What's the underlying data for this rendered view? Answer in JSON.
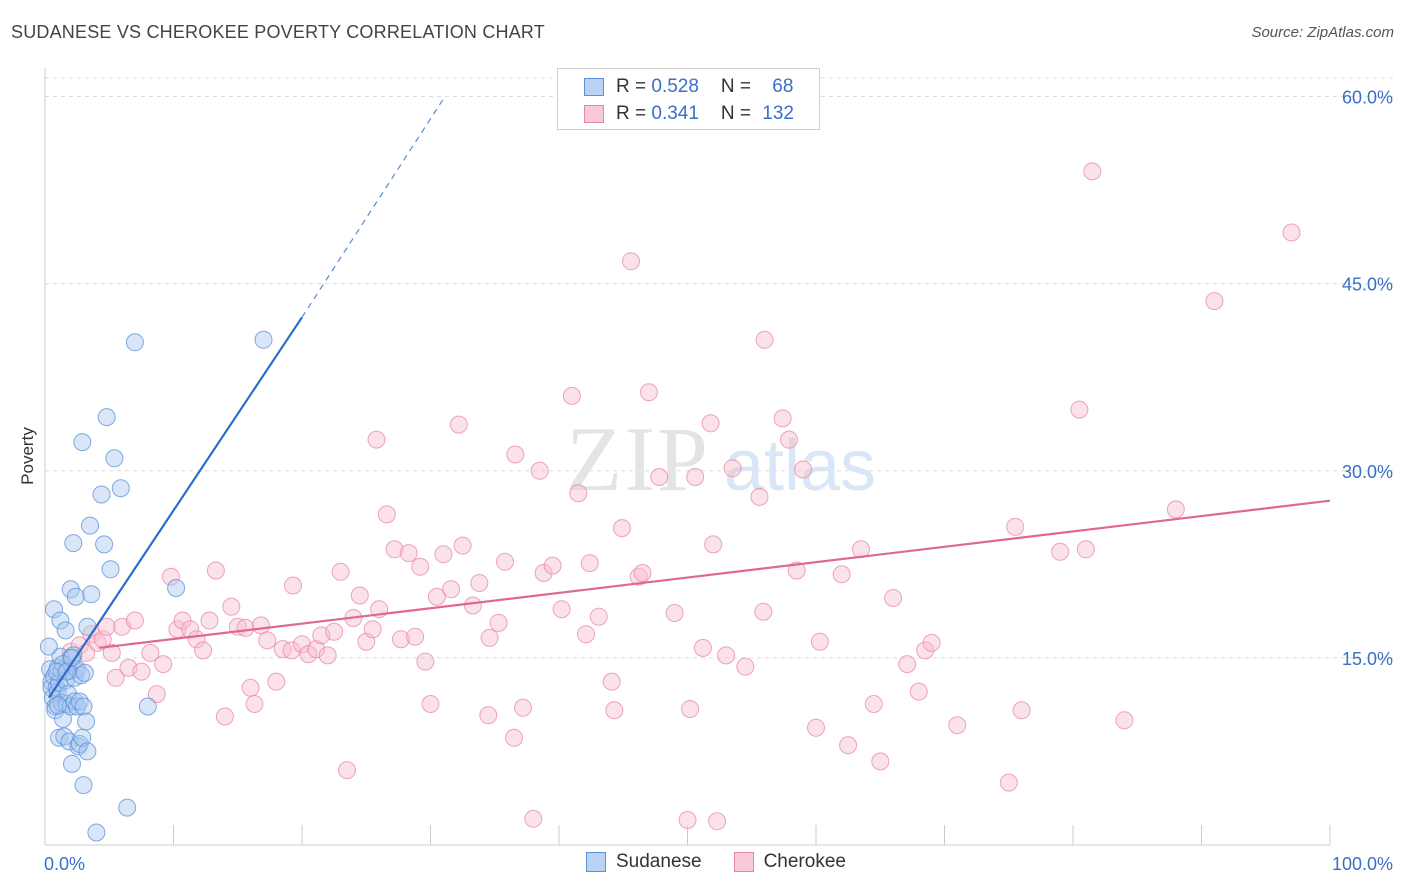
{
  "title": "SUDANESE VS CHEROKEE POVERTY CORRELATION CHART",
  "source": "Source: ZipAtlas.com",
  "watermark": {
    "zip": "ZIP",
    "atlas": "atlas"
  },
  "legend": {
    "rows": [
      {
        "r_label": "R = ",
        "r_value": "0.528",
        "n_label": "N = ",
        "n_value": "68"
      },
      {
        "r_label": "R = ",
        "r_value": "0.341",
        "n_label": "N = ",
        "n_value": "132"
      }
    ]
  },
  "colors": {
    "sudanese_fill": "#a9c8f0",
    "sudanese_stroke": "#5b8fd9",
    "sudanese_line": "#2f6cc9",
    "cherokee_fill": "#f6bccd",
    "cherokee_stroke": "#e888a7",
    "cherokee_line": "#e0688f",
    "axis_label": "#3a6fc8"
  },
  "chart_data": {
    "type": "scatter",
    "title": "SUDANESE VS CHEROKEE POVERTY CORRELATION CHART",
    "xlabel": "",
    "ylabel": "Poverty",
    "xlim": [
      0,
      100
    ],
    "ylim": [
      0,
      60
    ],
    "x_tick_labels": [
      "0.0%",
      "100.0%"
    ],
    "y_ticks": [
      15,
      30,
      45,
      60
    ],
    "y_tick_labels": [
      "15.0%",
      "30.0%",
      "45.0%",
      "60.0%"
    ],
    "grid": "horizontal dashed",
    "legend_position": "top-center",
    "series": [
      {
        "name": "Sudanese",
        "r": 0.528,
        "n": 68,
        "trend": {
          "x": [
            0.3,
            20
          ],
          "y": [
            11.8,
            42.3
          ],
          "dashed_to": [
            31,
            59.8
          ]
        },
        "points": [
          [
            0.3,
            15.9
          ],
          [
            0.4,
            14.1
          ],
          [
            0.5,
            13.1
          ],
          [
            0.5,
            12.6
          ],
          [
            0.6,
            11.8
          ],
          [
            0.7,
            18.9
          ],
          [
            0.7,
            13.5
          ],
          [
            0.8,
            11.1
          ],
          [
            0.8,
            10.8
          ],
          [
            0.9,
            12.6
          ],
          [
            1.0,
            14.2
          ],
          [
            1.0,
            12.3
          ],
          [
            1.1,
            8.6
          ],
          [
            1.1,
            13.0
          ],
          [
            1.2,
            18.0
          ],
          [
            1.2,
            15.1
          ],
          [
            1.3,
            14.0
          ],
          [
            1.3,
            11.4
          ],
          [
            1.4,
            10.1
          ],
          [
            1.5,
            8.7
          ],
          [
            1.6,
            17.2
          ],
          [
            1.6,
            13.2
          ],
          [
            1.7,
            11.3
          ],
          [
            1.8,
            14.0
          ],
          [
            1.8,
            12.1
          ],
          [
            1.9,
            8.3
          ],
          [
            2.0,
            20.5
          ],
          [
            2.0,
            15.0
          ],
          [
            2.0,
            11.1
          ],
          [
            2.1,
            6.5
          ],
          [
            2.2,
            24.2
          ],
          [
            2.2,
            15.2
          ],
          [
            2.3,
            13.4
          ],
          [
            2.3,
            11.5
          ],
          [
            2.4,
            19.9
          ],
          [
            2.5,
            14.1
          ],
          [
            2.5,
            11.1
          ],
          [
            2.6,
            7.9
          ],
          [
            2.7,
            11.5
          ],
          [
            2.7,
            8.1
          ],
          [
            2.8,
            13.6
          ],
          [
            2.9,
            8.6
          ],
          [
            2.9,
            32.3
          ],
          [
            3.0,
            4.8
          ],
          [
            3.0,
            11.1
          ],
          [
            3.1,
            13.8
          ],
          [
            3.2,
            9.9
          ],
          [
            3.3,
            7.5
          ],
          [
            3.3,
            17.5
          ],
          [
            3.5,
            25.6
          ],
          [
            3.6,
            20.1
          ],
          [
            4.0,
            1.0
          ],
          [
            4.4,
            28.1
          ],
          [
            4.6,
            24.1
          ],
          [
            4.8,
            34.3
          ],
          [
            5.1,
            22.1
          ],
          [
            5.4,
            31.0
          ],
          [
            5.9,
            28.6
          ],
          [
            6.4,
            3.0
          ],
          [
            7.0,
            40.3
          ],
          [
            8.0,
            11.1
          ],
          [
            10.2,
            20.6
          ],
          [
            17.0,
            40.5
          ],
          [
            1.4,
            14.5
          ],
          [
            0.9,
            13.9
          ],
          [
            1.7,
            13.9
          ],
          [
            2.1,
            15.0
          ],
          [
            1.0,
            11.2
          ]
        ]
      },
      {
        "name": "Cherokee",
        "r": 0.341,
        "n": 132,
        "trend": {
          "x": [
            4.2,
            100
          ],
          "y": [
            15.8,
            27.6
          ]
        },
        "points": [
          [
            1.5,
            14.2
          ],
          [
            2.0,
            15.5
          ],
          [
            2.3,
            14.1
          ],
          [
            2.7,
            16.0
          ],
          [
            3.2,
            15.4
          ],
          [
            3.6,
            16.9
          ],
          [
            4.1,
            16.2
          ],
          [
            4.5,
            16.5
          ],
          [
            4.8,
            17.5
          ],
          [
            5.2,
            15.4
          ],
          [
            5.5,
            13.4
          ],
          [
            6.0,
            17.5
          ],
          [
            6.5,
            14.2
          ],
          [
            7.0,
            18.0
          ],
          [
            7.5,
            13.9
          ],
          [
            8.2,
            15.4
          ],
          [
            8.7,
            12.1
          ],
          [
            9.2,
            14.5
          ],
          [
            9.8,
            21.5
          ],
          [
            10.3,
            17.3
          ],
          [
            10.7,
            18.0
          ],
          [
            11.3,
            17.3
          ],
          [
            11.8,
            16.5
          ],
          [
            12.3,
            15.6
          ],
          [
            12.8,
            18.0
          ],
          [
            13.3,
            22.0
          ],
          [
            14.0,
            10.3
          ],
          [
            14.5,
            19.1
          ],
          [
            15.0,
            17.5
          ],
          [
            15.6,
            17.4
          ],
          [
            16.0,
            12.6
          ],
          [
            16.3,
            11.3
          ],
          [
            16.8,
            17.6
          ],
          [
            17.3,
            16.4
          ],
          [
            18.0,
            13.1
          ],
          [
            18.5,
            15.7
          ],
          [
            19.2,
            15.6
          ],
          [
            19.3,
            20.8
          ],
          [
            20.0,
            16.1
          ],
          [
            20.5,
            15.3
          ],
          [
            21.1,
            15.7
          ],
          [
            21.5,
            16.8
          ],
          [
            22.0,
            15.2
          ],
          [
            22.5,
            17.1
          ],
          [
            23.0,
            21.9
          ],
          [
            23.5,
            6.0
          ],
          [
            24.0,
            18.2
          ],
          [
            24.5,
            20.0
          ],
          [
            25.0,
            16.3
          ],
          [
            25.5,
            17.3
          ],
          [
            25.8,
            32.5
          ],
          [
            26.0,
            18.9
          ],
          [
            26.6,
            26.5
          ],
          [
            27.2,
            23.7
          ],
          [
            27.7,
            16.5
          ],
          [
            28.3,
            23.4
          ],
          [
            28.8,
            16.7
          ],
          [
            29.2,
            22.3
          ],
          [
            29.6,
            14.7
          ],
          [
            30.0,
            11.3
          ],
          [
            30.5,
            19.9
          ],
          [
            31.0,
            23.3
          ],
          [
            31.6,
            20.5
          ],
          [
            32.2,
            33.7
          ],
          [
            32.5,
            24.0
          ],
          [
            33.3,
            19.2
          ],
          [
            33.8,
            21.0
          ],
          [
            34.5,
            10.4
          ],
          [
            34.6,
            16.6
          ],
          [
            35.3,
            17.8
          ],
          [
            35.8,
            22.7
          ],
          [
            36.5,
            8.6
          ],
          [
            36.6,
            31.3
          ],
          [
            37.2,
            11.0
          ],
          [
            38.0,
            2.1
          ],
          [
            38.5,
            30.0
          ],
          [
            38.8,
            21.8
          ],
          [
            39.5,
            22.4
          ],
          [
            40.2,
            18.9
          ],
          [
            41.0,
            36.0
          ],
          [
            41.5,
            28.2
          ],
          [
            42.1,
            16.9
          ],
          [
            42.4,
            22.6
          ],
          [
            43.1,
            18.3
          ],
          [
            44.1,
            13.1
          ],
          [
            44.3,
            10.8
          ],
          [
            44.9,
            25.4
          ],
          [
            45.6,
            46.8
          ],
          [
            46.2,
            21.5
          ],
          [
            46.5,
            21.8
          ],
          [
            47.0,
            36.3
          ],
          [
            47.8,
            29.5
          ],
          [
            49.0,
            18.6
          ],
          [
            50.0,
            2.0
          ],
          [
            50.2,
            10.9
          ],
          [
            50.6,
            29.5
          ],
          [
            51.2,
            15.8
          ],
          [
            51.8,
            33.8
          ],
          [
            52.0,
            24.1
          ],
          [
            52.3,
            1.9
          ],
          [
            53.0,
            15.2
          ],
          [
            53.5,
            30.2
          ],
          [
            54.5,
            14.3
          ],
          [
            55.6,
            27.9
          ],
          [
            56.0,
            40.5
          ],
          [
            57.4,
            34.2
          ],
          [
            57.9,
            32.5
          ],
          [
            58.5,
            22.0
          ],
          [
            59.0,
            30.1
          ],
          [
            60.0,
            9.4
          ],
          [
            60.3,
            16.3
          ],
          [
            62.0,
            21.7
          ],
          [
            62.5,
            8.0
          ],
          [
            63.5,
            23.7
          ],
          [
            64.5,
            11.3
          ],
          [
            65.0,
            6.7
          ],
          [
            66.0,
            19.8
          ],
          [
            67.1,
            14.5
          ],
          [
            68.0,
            12.3
          ],
          [
            68.5,
            15.6
          ],
          [
            69.0,
            16.2
          ],
          [
            71.0,
            9.6
          ],
          [
            75.0,
            5.0
          ],
          [
            75.5,
            25.5
          ],
          [
            76.0,
            10.8
          ],
          [
            79.0,
            23.5
          ],
          [
            80.5,
            34.9
          ],
          [
            81.0,
            23.7
          ],
          [
            81.5,
            54.0
          ],
          [
            84.0,
            10.0
          ],
          [
            88.0,
            26.9
          ],
          [
            91.0,
            43.6
          ],
          [
            97.0,
            49.1
          ],
          [
            55.9,
            18.7
          ]
        ]
      }
    ]
  }
}
